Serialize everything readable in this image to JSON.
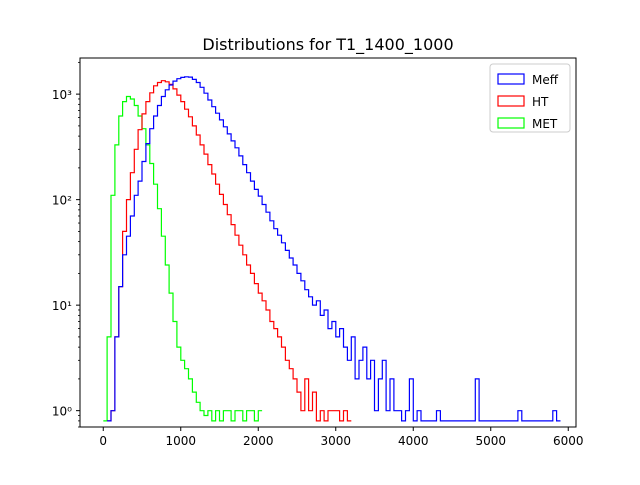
{
  "chart_data": {
    "type": "histogram-step",
    "title": "Distributions for T1_1400_1000",
    "xlabel": "",
    "ylabel": "",
    "xlim": [
      -300,
      6100
    ],
    "ylim": [
      0.7,
      2200
    ],
    "yscale": "log",
    "x_ticks": [
      0,
      1000,
      2000,
      3000,
      4000,
      5000,
      6000
    ],
    "x_tick_labels": [
      "0",
      "1000",
      "2000",
      "3000",
      "4000",
      "5000",
      "6000"
    ],
    "y_ticks": [
      1,
      10,
      100,
      1000
    ],
    "y_tick_labels": [
      "10⁰",
      "10¹",
      "10²",
      "10³"
    ],
    "grid": false,
    "legend_position": "top-right",
    "series": [
      {
        "name": "Meff",
        "color": "#0000ff",
        "points": [
          [
            50,
            0.8
          ],
          [
            100,
            1
          ],
          [
            150,
            5
          ],
          [
            200,
            15
          ],
          [
            250,
            30
          ],
          [
            300,
            45
          ],
          [
            350,
            70
          ],
          [
            400,
            110
          ],
          [
            450,
            150
          ],
          [
            500,
            230
          ],
          [
            550,
            340
          ],
          [
            600,
            470
          ],
          [
            650,
            620
          ],
          [
            700,
            780
          ],
          [
            750,
            950
          ],
          [
            800,
            1100
          ],
          [
            850,
            1220
          ],
          [
            900,
            1330
          ],
          [
            950,
            1400
          ],
          [
            1000,
            1440
          ],
          [
            1050,
            1460
          ],
          [
            1100,
            1450
          ],
          [
            1150,
            1380
          ],
          [
            1200,
            1290
          ],
          [
            1250,
            1160
          ],
          [
            1300,
            1020
          ],
          [
            1350,
            880
          ],
          [
            1400,
            760
          ],
          [
            1450,
            660
          ],
          [
            1500,
            570
          ],
          [
            1550,
            490
          ],
          [
            1600,
            420
          ],
          [
            1650,
            360
          ],
          [
            1700,
            310
          ],
          [
            1750,
            260
          ],
          [
            1800,
            215
          ],
          [
            1850,
            180
          ],
          [
            1900,
            150
          ],
          [
            1950,
            125
          ],
          [
            2000,
            108
          ],
          [
            2050,
            90
          ],
          [
            2100,
            76
          ],
          [
            2150,
            63
          ],
          [
            2200,
            53
          ],
          [
            2250,
            46
          ],
          [
            2300,
            39
          ],
          [
            2350,
            33
          ],
          [
            2400,
            28
          ],
          [
            2450,
            24
          ],
          [
            2500,
            20
          ],
          [
            2550,
            17
          ],
          [
            2600,
            14
          ],
          [
            2650,
            12
          ],
          [
            2700,
            10
          ],
          [
            2750,
            11
          ],
          [
            2800,
            8
          ],
          [
            2850,
            9
          ],
          [
            2900,
            6
          ],
          [
            2950,
            7
          ],
          [
            3000,
            5
          ],
          [
            3050,
            6
          ],
          [
            3100,
            4
          ],
          [
            3150,
            3
          ],
          [
            3200,
            5
          ],
          [
            3250,
            2
          ],
          [
            3300,
            3
          ],
          [
            3350,
            4
          ],
          [
            3400,
            2
          ],
          [
            3450,
            3
          ],
          [
            3500,
            1
          ],
          [
            3550,
            2
          ],
          [
            3600,
            3
          ],
          [
            3650,
            1
          ],
          [
            3700,
            2
          ],
          [
            3750,
            1
          ],
          [
            3800,
            1
          ],
          [
            3850,
            0.8
          ],
          [
            3900,
            1
          ],
          [
            3950,
            2
          ],
          [
            4000,
            0.8
          ],
          [
            4050,
            1
          ],
          [
            4100,
            0.8
          ],
          [
            4300,
            1
          ],
          [
            4350,
            0.8
          ],
          [
            4800,
            2
          ],
          [
            4850,
            0.8
          ],
          [
            5350,
            1
          ],
          [
            5400,
            0.8
          ],
          [
            5800,
            1
          ],
          [
            5850,
            0.8
          ]
        ]
      },
      {
        "name": "HT",
        "color": "#ff0000",
        "points": [
          [
            50,
            0.8
          ],
          [
            100,
            1
          ],
          [
            150,
            5
          ],
          [
            200,
            15
          ],
          [
            250,
            50
          ],
          [
            300,
            100
          ],
          [
            350,
            180
          ],
          [
            400,
            300
          ],
          [
            450,
            460
          ],
          [
            500,
            650
          ],
          [
            550,
            850
          ],
          [
            600,
            1030
          ],
          [
            650,
            1200
          ],
          [
            700,
            1290
          ],
          [
            750,
            1340
          ],
          [
            800,
            1310
          ],
          [
            850,
            1240
          ],
          [
            900,
            1120
          ],
          [
            950,
            980
          ],
          [
            1000,
            850
          ],
          [
            1050,
            720
          ],
          [
            1100,
            610
          ],
          [
            1150,
            500
          ],
          [
            1200,
            410
          ],
          [
            1250,
            330
          ],
          [
            1300,
            270
          ],
          [
            1350,
            215
          ],
          [
            1400,
            175
          ],
          [
            1450,
            140
          ],
          [
            1500,
            112
          ],
          [
            1550,
            90
          ],
          [
            1600,
            72
          ],
          [
            1650,
            58
          ],
          [
            1700,
            46
          ],
          [
            1750,
            37
          ],
          [
            1800,
            30
          ],
          [
            1850,
            24
          ],
          [
            1900,
            20
          ],
          [
            1950,
            16
          ],
          [
            2000,
            13
          ],
          [
            2050,
            11
          ],
          [
            2100,
            9
          ],
          [
            2150,
            7
          ],
          [
            2200,
            6
          ],
          [
            2250,
            5
          ],
          [
            2300,
            4
          ],
          [
            2350,
            3
          ],
          [
            2400,
            2.5
          ],
          [
            2450,
            2
          ],
          [
            2500,
            1.5
          ],
          [
            2550,
            1
          ],
          [
            2600,
            2
          ],
          [
            2650,
            1
          ],
          [
            2700,
            1.5
          ],
          [
            2750,
            0.8
          ],
          [
            2800,
            1
          ],
          [
            2850,
            0.8
          ],
          [
            2900,
            1
          ],
          [
            3050,
            0.8
          ],
          [
            3100,
            1
          ],
          [
            3150,
            0.8
          ]
        ]
      },
      {
        "name": "MET",
        "color": "#00ff00",
        "points": [
          [
            0,
            0.8
          ],
          [
            50,
            5
          ],
          [
            100,
            110
          ],
          [
            150,
            330
          ],
          [
            200,
            620
          ],
          [
            250,
            850
          ],
          [
            300,
            950
          ],
          [
            350,
            900
          ],
          [
            400,
            780
          ],
          [
            450,
            620
          ],
          [
            500,
            470
          ],
          [
            550,
            330
          ],
          [
            600,
            220
          ],
          [
            650,
            140
          ],
          [
            700,
            82
          ],
          [
            750,
            45
          ],
          [
            800,
            24
          ],
          [
            850,
            13
          ],
          [
            900,
            7
          ],
          [
            950,
            4
          ],
          [
            1000,
            3
          ],
          [
            1050,
            2.5
          ],
          [
            1100,
            2
          ],
          [
            1150,
            1.5
          ],
          [
            1200,
            1.2
          ],
          [
            1250,
            1
          ],
          [
            1300,
            0.9
          ],
          [
            1350,
            1
          ],
          [
            1400,
            0.8
          ],
          [
            1450,
            1
          ],
          [
            1500,
            0.8
          ],
          [
            1550,
            1
          ],
          [
            1650,
            0.8
          ],
          [
            1700,
            1
          ],
          [
            1800,
            0.8
          ],
          [
            1850,
            1
          ],
          [
            1950,
            0.8
          ],
          [
            2000,
            1
          ]
        ]
      }
    ]
  }
}
